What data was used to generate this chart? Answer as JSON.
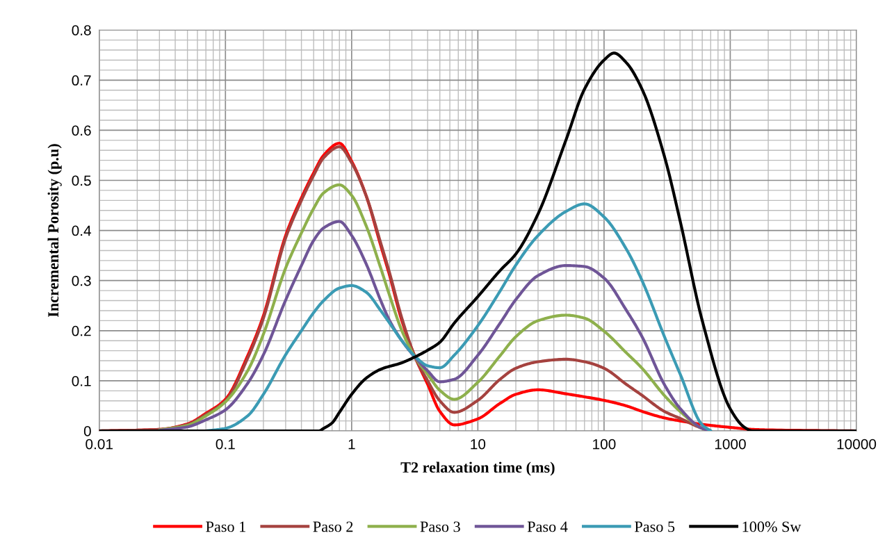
{
  "chart_data": {
    "type": "line",
    "xlabel": "T2 relaxation time (ms)",
    "ylabel": "Incremental Porosity (p.u)",
    "log": "x",
    "x": [
      0.01,
      0.03,
      0.05,
      0.07,
      0.1,
      0.15,
      0.2,
      0.3,
      0.4,
      0.5,
      0.6,
      0.8,
      1,
      1.3,
      1.7,
      2,
      2.5,
      3.2,
      4,
      5,
      6.5,
      10,
      15,
      20,
      30,
      50,
      70,
      100,
      150,
      200,
      300,
      400,
      600,
      700,
      1000,
      1500,
      2000,
      10000
    ],
    "series": [
      {
        "name": "Paso 1",
        "color": "#ff0000",
        "values": [
          0,
          0.003,
          0.014,
          0.035,
          0.063,
          0.15,
          0.23,
          0.39,
          0.465,
          0.515,
          0.55,
          0.574,
          0.538,
          0.47,
          0.37,
          0.31,
          0.22,
          0.146,
          0.093,
          0.039,
          0.012,
          0.024,
          0.055,
          0.073,
          0.082,
          0.074,
          0.068,
          0.061,
          0.05,
          0.039,
          0.026,
          0.02,
          0.013,
          0.011,
          0.007,
          0.003,
          0.002,
          0
        ]
      },
      {
        "name": "Paso 2",
        "color": "#a5423f",
        "x": [
          0.01,
          0.03,
          0.05,
          0.07,
          0.1,
          0.15,
          0.2,
          0.3,
          0.4,
          0.5,
          0.6,
          0.8,
          1,
          1.3,
          1.7,
          2,
          2.5,
          3.2,
          4,
          5,
          6.5,
          10,
          15,
          20,
          30,
          50,
          70,
          100,
          150,
          200,
          300,
          400,
          600,
          700
        ],
        "values": [
          0,
          0.003,
          0.013,
          0.033,
          0.06,
          0.145,
          0.225,
          0.385,
          0.46,
          0.51,
          0.545,
          0.567,
          0.535,
          0.47,
          0.375,
          0.315,
          0.225,
          0.146,
          0.1,
          0.06,
          0.037,
          0.061,
          0.103,
          0.125,
          0.138,
          0.143,
          0.138,
          0.125,
          0.093,
          0.071,
          0.039,
          0.025,
          0.005,
          0
        ]
      },
      {
        "name": "Paso 3",
        "color": "#8eb04c",
        "x": [
          0.03,
          0.05,
          0.07,
          0.1,
          0.15,
          0.2,
          0.3,
          0.4,
          0.5,
          0.6,
          0.8,
          1,
          1.3,
          1.7,
          2,
          2.5,
          3.2,
          4,
          5,
          6.5,
          10,
          15,
          20,
          30,
          50,
          70,
          100,
          150,
          200,
          300,
          400,
          600,
          700
        ],
        "values": [
          0.002,
          0.011,
          0.03,
          0.058,
          0.12,
          0.193,
          0.325,
          0.395,
          0.444,
          0.475,
          0.491,
          0.47,
          0.41,
          0.325,
          0.27,
          0.2,
          0.146,
          0.113,
          0.081,
          0.063,
          0.097,
          0.15,
          0.188,
          0.22,
          0.231,
          0.225,
          0.199,
          0.156,
          0.125,
          0.071,
          0.039,
          0.005,
          0
        ]
      },
      {
        "name": "Paso 4",
        "color": "#6f5597",
        "x": [
          0.03,
          0.05,
          0.07,
          0.1,
          0.15,
          0.2,
          0.3,
          0.4,
          0.5,
          0.6,
          0.8,
          1,
          1.3,
          1.7,
          2,
          2.5,
          3.2,
          4,
          5,
          6.5,
          10,
          15,
          20,
          30,
          50,
          70,
          100,
          150,
          200,
          300,
          400,
          600,
          700
        ],
        "values": [
          0.001,
          0.008,
          0.022,
          0.042,
          0.095,
          0.152,
          0.261,
          0.33,
          0.38,
          0.405,
          0.418,
          0.39,
          0.334,
          0.26,
          0.22,
          0.18,
          0.146,
          0.12,
          0.098,
          0.103,
          0.151,
          0.215,
          0.262,
          0.31,
          0.33,
          0.328,
          0.305,
          0.241,
          0.188,
          0.093,
          0.045,
          0.005,
          0
        ]
      },
      {
        "name": "Paso 5",
        "color": "#3b9bb4",
        "x": [
          0.07,
          0.1,
          0.15,
          0.2,
          0.3,
          0.4,
          0.5,
          0.6,
          0.8,
          1,
          1.3,
          1.7,
          2,
          2.5,
          3.2,
          4,
          5,
          6.5,
          10,
          15,
          20,
          30,
          50,
          70,
          100,
          150,
          200,
          300,
          400,
          600,
          700
        ],
        "values": [
          0,
          0.005,
          0.03,
          0.073,
          0.152,
          0.2,
          0.236,
          0.26,
          0.285,
          0.29,
          0.277,
          0.24,
          0.215,
          0.18,
          0.148,
          0.13,
          0.126,
          0.151,
          0.21,
          0.279,
          0.331,
          0.39,
          0.438,
          0.453,
          0.427,
          0.363,
          0.3,
          0.189,
          0.114,
          0.012,
          0
        ]
      },
      {
        "name": "100% Sw",
        "color": "#000000",
        "x": [
          0.01,
          0.55,
          0.6,
          0.7,
          0.8,
          1,
          1.3,
          1.7,
          2.5,
          3.2,
          4,
          5,
          6.5,
          10,
          15,
          20,
          30,
          50,
          70,
          100,
          120,
          150,
          200,
          300,
          400,
          600,
          1000,
          1300,
          1500,
          10000
        ],
        "values": [
          0,
          0,
          0.005,
          0.016,
          0.037,
          0.073,
          0.105,
          0.123,
          0.136,
          0.148,
          0.161,
          0.177,
          0.215,
          0.268,
          0.32,
          0.353,
          0.433,
          0.581,
          0.682,
          0.74,
          0.754,
          0.735,
          0.682,
          0.549,
          0.42,
          0.22,
          0.044,
          0.007,
          0,
          0
        ]
      }
    ],
    "xlim": [
      0.01,
      10000
    ],
    "xticks": [
      0.01,
      0.1,
      1,
      10,
      100,
      1000,
      10000
    ],
    "ylim": [
      0,
      0.8
    ],
    "yticks": [
      0,
      0.1,
      0.2,
      0.3,
      0.4,
      0.5,
      0.6,
      0.7,
      0.8
    ],
    "grid": true,
    "legend": "bottom",
    "marker": "none",
    "line_style": "solid"
  }
}
